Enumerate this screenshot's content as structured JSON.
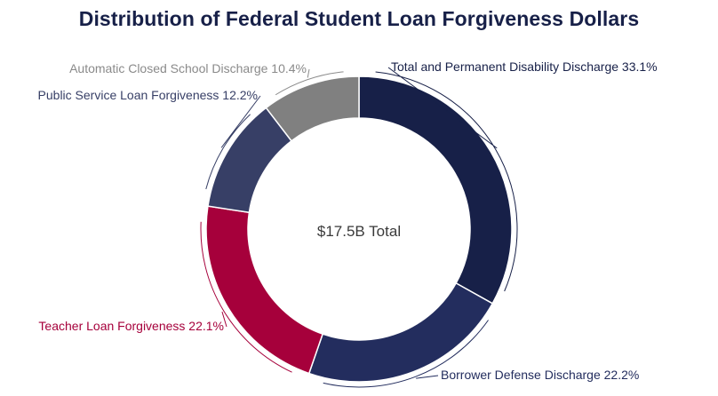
{
  "chart_data": {
    "type": "pie",
    "title": "Distribution of Federal Student Loan Forgiveness Dollars",
    "center_label": "$17.5B Total",
    "categories": [
      "Total and Permanent Disability Discharge",
      "Borrower Defense Discharge",
      "Teacher Loan Forgiveness",
      "Public Service Loan Forgiveness",
      "Automatic Closed School Discharge"
    ],
    "values": [
      33.1,
      22.2,
      22.1,
      12.2,
      10.4
    ],
    "labels": [
      "Total and Permanent Disability Discharge 33.1%",
      "Borrower Defense Discharge 22.2%",
      "Teacher Loan Forgiveness 22.1%",
      "Public Service Loan Forgiveness 12.2%",
      "Automatic Closed School Discharge 10.4%"
    ],
    "colors": [
      "#172048",
      "#232d5e",
      "#a6003b",
      "#373f66",
      "#808080"
    ],
    "label_colors": [
      "#172048",
      "#232d5e",
      "#a6003b",
      "#373f66",
      "#8a8a8a"
    ]
  }
}
